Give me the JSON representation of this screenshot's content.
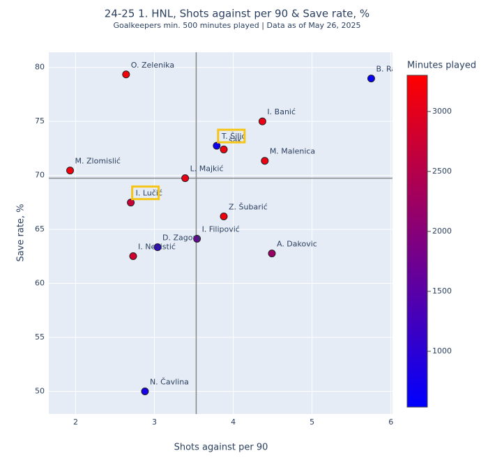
{
  "chart_data": {
    "type": "scatter",
    "title": "24-25 1. HNL, Shots against per 90 & Save rate, %",
    "subtitle": "Goalkeepers min. 500 minutes played | Data as of May 26, 2025",
    "x_label": "Shots against per 90",
    "y_label": "Save rate, %",
    "colorbar_title": "Minutes played",
    "labels": [
      "O. Zelenika",
      "B. Ra",
      "I. Banić",
      "T. Šilić",
      "šak",
      "M. Malenica",
      "M. Zlomislić",
      "L. Majkić",
      "I. Lučić",
      "Z. Šubarić",
      "I. Filipović",
      "D. Zagora",
      "I. Nevistić",
      "A. Dakovic",
      "N. Čavlina"
    ],
    "x": [
      2.64,
      5.75,
      4.37,
      3.79,
      3.88,
      4.4,
      1.93,
      3.39,
      2.7,
      3.88,
      3.54,
      3.04,
      2.73,
      4.49,
      2.88
    ],
    "values": [
      79.35,
      78.97,
      75.0,
      72.74,
      72.4,
      71.35,
      70.45,
      69.74,
      67.48,
      66.2,
      64.13,
      63.35,
      62.52,
      62.77,
      50.0
    ],
    "minutes": [
      3200,
      600,
      3100,
      700,
      3150,
      3100,
      3150,
      3050,
      2700,
      3150,
      1700,
      1100,
      2800,
      2200,
      800
    ],
    "highlight": [
      3,
      8
    ],
    "mean_x": 3.53,
    "mean_y": 69.74,
    "xlim": [
      1.66,
      6.02
    ],
    "xticks": [
      2,
      3,
      4,
      5,
      6
    ],
    "ylim": [
      47.9,
      81.4
    ],
    "yticks": [
      50,
      55,
      60,
      65,
      70,
      75,
      80
    ],
    "colorlim": [
      535,
      3302
    ],
    "colorticks": [
      1000,
      1500,
      2000,
      2500,
      3000
    ],
    "colorscale": [
      "#0000ff",
      "#ff0000"
    ],
    "grid": true
  }
}
